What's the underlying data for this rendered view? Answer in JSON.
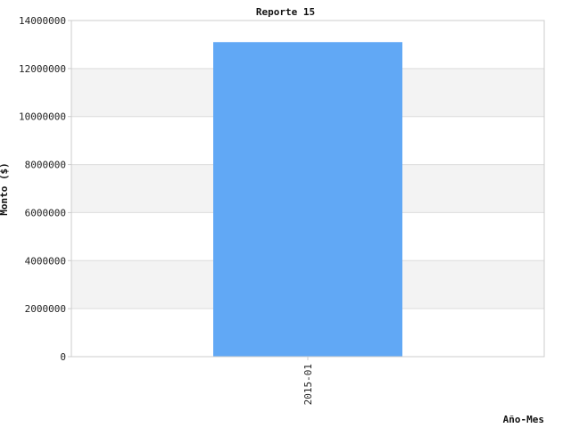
{
  "chart_data": {
    "type": "bar",
    "title": "Reporte 15",
    "xlabel": "Año-Mes",
    "ylabel": "Monto ($)",
    "categories": [
      "2015-01"
    ],
    "values": [
      13100000
    ],
    "ylim": [
      0,
      14000000
    ],
    "yticks": [
      0,
      2000000,
      4000000,
      6000000,
      8000000,
      10000000,
      12000000,
      14000000
    ],
    "ytick_labels": [
      "0",
      "2000000",
      "4000000",
      "6000000",
      "8000000",
      "10000000",
      "12000000",
      "14000000"
    ],
    "grid": true,
    "grid_style": "alternating horizontal bands",
    "legend": false
  },
  "colors": {
    "bar": "#61a8f5",
    "band": "#f3f3f3",
    "gridline": "#dddddd",
    "frame": "#cccccc"
  }
}
